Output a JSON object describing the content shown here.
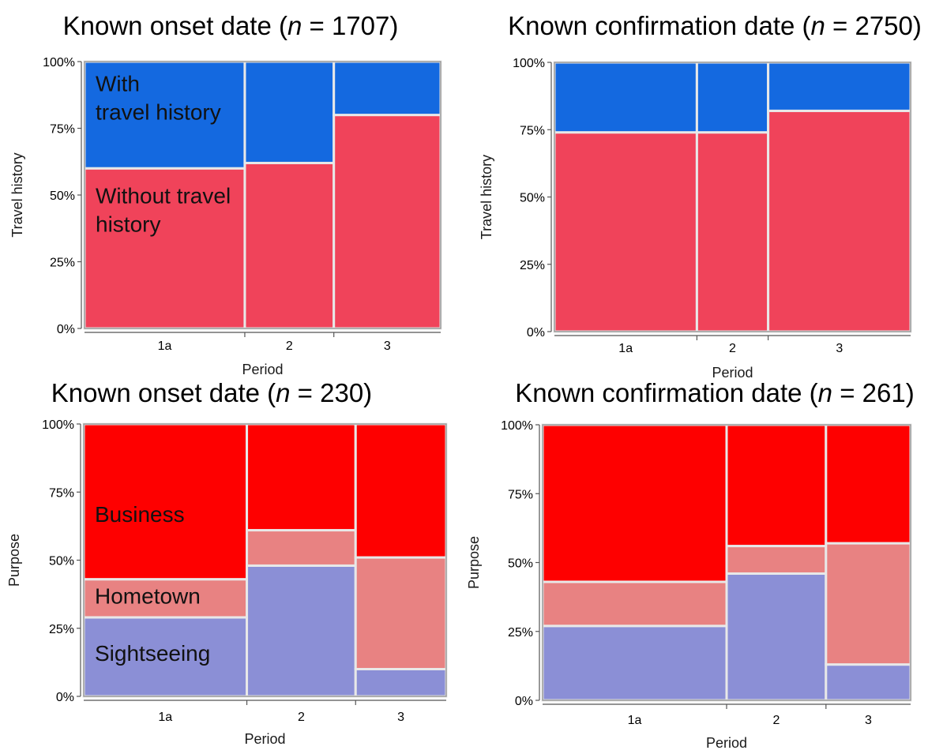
{
  "chart_data": [
    {
      "type": "mosaic",
      "title": {
        "text": "Known onset date (",
        "italic": "n",
        "suffix": " = 1707)"
      },
      "xlabel": "Period",
      "ylabel": "Travel history",
      "yticks": [
        "0%",
        "25%",
        "50%",
        "75%",
        "100%"
      ],
      "categories": [
        "1a",
        "2",
        "3"
      ],
      "column_widths": [
        0.45,
        0.25,
        0.3
      ],
      "series": [
        {
          "name": "Without travel history",
          "color": "#f0435a",
          "values": [
            0.6,
            0.62,
            0.8
          ]
        },
        {
          "name": "With travel history",
          "color": "#1469e0",
          "values": [
            0.4,
            0.38,
            0.2
          ]
        }
      ],
      "annotations": [
        {
          "lines": [
            "With",
            "travel history"
          ],
          "column": 0,
          "y_top": 0.96
        },
        {
          "lines": [
            "Without travel",
            "history"
          ],
          "column": 0,
          "y_top": 0.54
        }
      ]
    },
    {
      "type": "mosaic",
      "title": {
        "text": "Known confirmation date (",
        "italic": "n",
        "suffix": " = 2750)"
      },
      "xlabel": "Period",
      "ylabel": "Travel history",
      "yticks": [
        "0%",
        "25%",
        "50%",
        "75%",
        "100%"
      ],
      "categories": [
        "1a",
        "2",
        "3"
      ],
      "column_widths": [
        0.4,
        0.2,
        0.4
      ],
      "series": [
        {
          "name": "Without travel history",
          "color": "#f0435a",
          "values": [
            0.74,
            0.74,
            0.82
          ]
        },
        {
          "name": "With travel history",
          "color": "#1469e0",
          "values": [
            0.26,
            0.26,
            0.18
          ]
        }
      ],
      "annotations": []
    },
    {
      "type": "mosaic",
      "title": {
        "text": "Known onset date (",
        "italic": "n",
        "suffix": " = 230)"
      },
      "xlabel": "Period",
      "ylabel": "Purpose",
      "yticks": [
        "0%",
        "25%",
        "50%",
        "75%",
        "100%"
      ],
      "categories": [
        "1a",
        "2",
        "3"
      ],
      "column_widths": [
        0.45,
        0.3,
        0.25
      ],
      "series": [
        {
          "name": "Sightseeing",
          "color": "#8b8fd6",
          "values": [
            0.29,
            0.48,
            0.1
          ]
        },
        {
          "name": "Hometown",
          "color": "#e88282",
          "values": [
            0.14,
            0.13,
            0.41
          ]
        },
        {
          "name": "Business",
          "color": "#fe0000",
          "values": [
            0.57,
            0.39,
            0.49
          ]
        }
      ],
      "annotations": [
        {
          "lines": [
            "Business"
          ],
          "column": 0,
          "y_top": 0.71
        },
        {
          "lines": [
            "Hometown"
          ],
          "column": 0,
          "y_top": 0.41
        },
        {
          "lines": [
            "Sightseeing"
          ],
          "column": 0,
          "y_top": 0.2
        }
      ]
    },
    {
      "type": "mosaic",
      "title": {
        "text": "Known confirmation date (",
        "italic": "n",
        "suffix": " = 261)"
      },
      "xlabel": "Period",
      "ylabel": "Purpose",
      "yticks": [
        "0%",
        "25%",
        "50%",
        "75%",
        "100%"
      ],
      "categories": [
        "1a",
        "2",
        "3"
      ],
      "column_widths": [
        0.5,
        0.27,
        0.23
      ],
      "series": [
        {
          "name": "Sightseeing",
          "color": "#8b8fd6",
          "values": [
            0.27,
            0.46,
            0.13
          ]
        },
        {
          "name": "Hometown",
          "color": "#e88282",
          "values": [
            0.16,
            0.1,
            0.44
          ]
        },
        {
          "name": "Business",
          "color": "#fe0000",
          "values": [
            0.57,
            0.44,
            0.43
          ]
        }
      ],
      "annotations": []
    }
  ]
}
